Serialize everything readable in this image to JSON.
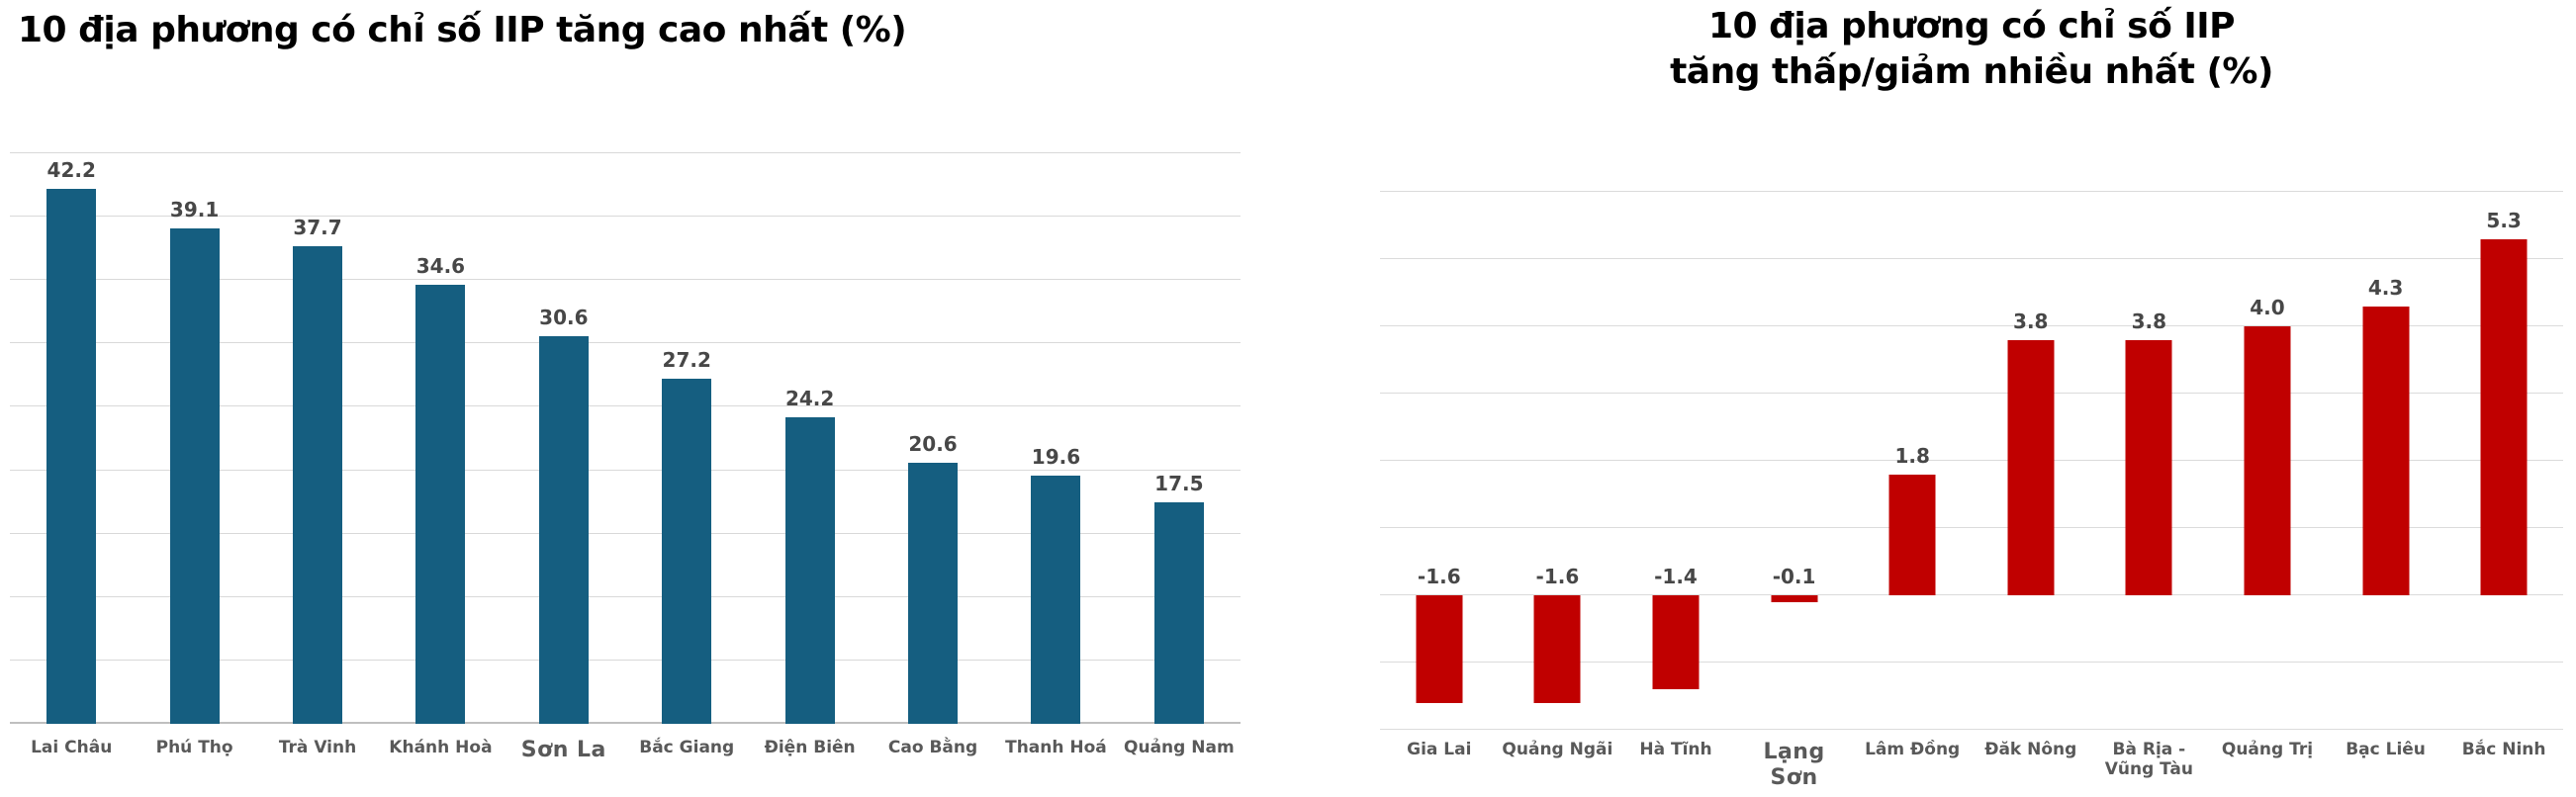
{
  "figure": {
    "background": "#FFFFFF"
  },
  "chart_data": [
    {
      "type": "bar",
      "title": "10 địa phương có chỉ số IIP tăng cao nhất (%)",
      "categories": [
        "Lai Châu",
        "Phú Thọ",
        "Trà Vinh",
        "Khánh Hoà",
        "Sơn La",
        "Bắc Giang",
        "Điện Biên",
        "Cao Bằng",
        "Thanh Hoá",
        "Quảng Nam"
      ],
      "values": [
        42.2,
        39.1,
        37.7,
        34.6,
        30.6,
        27.2,
        24.2,
        20.6,
        19.6,
        17.5
      ],
      "unit": "%",
      "bar_color": "#155E80",
      "value_label_color": "#474747",
      "axis_label_color": "#595959",
      "grid_color": "#D9D9D9",
      "ylim": [
        0,
        45
      ],
      "grid_step": 5,
      "grid": true,
      "legend": "none",
      "value_labels": "outside-end",
      "emphasized_category": "Sơn La"
    },
    {
      "type": "bar",
      "title": "10 địa phương có chỉ số IIP tăng thấp/giảm nhiều nhất (%)",
      "title_lines": [
        "10 địa phương có chỉ số IIP",
        "tăng thấp/giảm nhiều nhất (%)"
      ],
      "categories": [
        "Gia Lai",
        "Quảng Ngãi",
        "Hà Tĩnh",
        "Lạng Sơn",
        "Lâm Đồng",
        "Đăk Nông",
        "Bà Rịa - Vũng Tàu",
        "Quảng Trị",
        "Bạc Liêu",
        "Bắc Ninh"
      ],
      "values": [
        -1.6,
        -1.6,
        -1.4,
        -0.1,
        1.8,
        3.8,
        3.8,
        4.0,
        4.3,
        5.3
      ],
      "unit": "%",
      "bar_color": "#C00000",
      "value_label_color": "#474747",
      "axis_label_color": "#595959",
      "grid_color": "#DBDBDB",
      "ylim": [
        -2,
        6
      ],
      "grid_step": 1,
      "grid": true,
      "legend": "none",
      "value_labels": "outside-end",
      "emphasized_category": "Lạng Sơn"
    }
  ]
}
